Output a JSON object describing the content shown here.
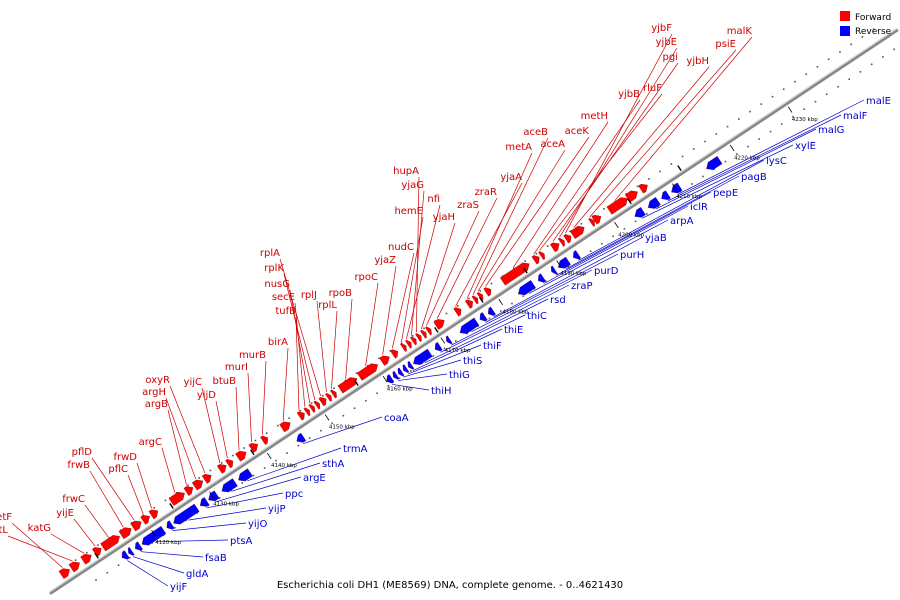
{
  "caption": "Escherichia coli DH1 (ME8569) DNA, complete genome. - 0..4621430",
  "legend": {
    "forward": "Forward",
    "reverse": "Reverse"
  },
  "colors": {
    "forward": "#ff0000",
    "reverse": "#0000ff",
    "forward_label": "#cc0000",
    "reverse_label": "#0000cc",
    "backbone": "#888888",
    "leader_forward": "#cc0000",
    "leader_reverse": "#0000cc"
  },
  "ticks": [
    "4120 kbp",
    "4130 kbp",
    "4140 kbp",
    "4150 kbp",
    "4160 kbp",
    "4170 kbp",
    "4180 kbp",
    "4190 kbp",
    "4200 kbp",
    "4210 kbp",
    "4220 kbp",
    "4230 kbp"
  ],
  "forward_labels": [
    "metF",
    "metL",
    "katG",
    "yijE",
    "frwC",
    "frwB",
    "pflD",
    "pflC",
    "frwD",
    "argC",
    "argB",
    "argH",
    "oxyR",
    "yijC",
    "yijD",
    "btuB",
    "murI",
    "murB",
    "birA",
    "tufB",
    "secE",
    "nusG",
    "rplK",
    "rplA",
    "rplJ",
    "rplL",
    "rpoB",
    "rpoC",
    "yjaZ",
    "nudC",
    "hemE",
    "nfi",
    "yjaG",
    "hupA",
    "yjaH",
    "zraS",
    "zraR",
    "yjaA",
    "metA",
    "aceB",
    "aceA",
    "aceK",
    "metH",
    "yjbB",
    "rluF",
    "pgi",
    "yjbE",
    "yjbF",
    "yjbH",
    "psiE",
    "malK"
  ],
  "reverse_labels": [
    "yijF",
    "gldA",
    "fsaB",
    "ptsA",
    "yijO",
    "yijP",
    "ppc",
    "argE",
    "sthA",
    "trmA",
    "coaA",
    "thiH",
    "thiG",
    "thiS",
    "thiF",
    "thiE",
    "thiC",
    "rsd",
    "zraP",
    "purD",
    "purH",
    "yjaB",
    "arpA",
    "iclR",
    "pepE",
    "pagB",
    "lysC",
    "xylE",
    "malG",
    "malF",
    "malE"
  ]
}
